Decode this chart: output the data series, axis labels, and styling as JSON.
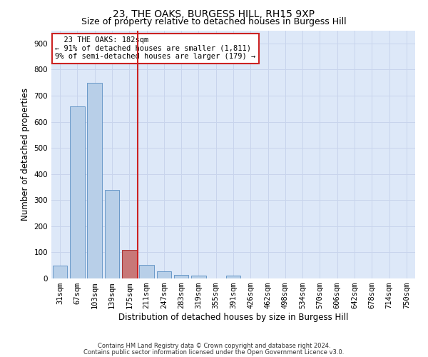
{
  "title1": "23, THE OAKS, BURGESS HILL, RH15 9XP",
  "title2": "Size of property relative to detached houses in Burgess Hill",
  "xlabel": "Distribution of detached houses by size in Burgess Hill",
  "ylabel": "Number of detached properties",
  "footer1": "Contains HM Land Registry data © Crown copyright and database right 2024.",
  "footer2": "Contains public sector information licensed under the Open Government Licence v3.0.",
  "annotation_line1": "  23 THE OAKS: 182sqm",
  "annotation_line2": "← 91% of detached houses are smaller (1,811)",
  "annotation_line3": "9% of semi-detached houses are larger (179) →",
  "bar_color": "#b8cfe8",
  "bar_edge_color": "#6898c8",
  "highlight_bar_color": "#c87878",
  "highlight_bar_edge_color": "#a83030",
  "vline_color": "#cc2222",
  "annotation_box_edge": "#cc2222",
  "background_color": "#dde8f8",
  "categories": [
    "31sqm",
    "67sqm",
    "103sqm",
    "139sqm",
    "175sqm",
    "211sqm",
    "247sqm",
    "283sqm",
    "319sqm",
    "355sqm",
    "391sqm",
    "426sqm",
    "462sqm",
    "498sqm",
    "534sqm",
    "570sqm",
    "606sqm",
    "642sqm",
    "678sqm",
    "714sqm",
    "750sqm"
  ],
  "values": [
    50,
    660,
    750,
    338,
    110,
    52,
    26,
    15,
    10,
    0,
    10,
    0,
    0,
    0,
    0,
    0,
    0,
    0,
    0,
    0,
    0
  ],
  "highlight_index": 4,
  "vline_x": 4.5,
  "ylim": [
    0,
    950
  ],
  "yticks": [
    0,
    100,
    200,
    300,
    400,
    500,
    600,
    700,
    800,
    900
  ],
  "grid_color": "#c8d4ec",
  "title1_fontsize": 10,
  "title2_fontsize": 9,
  "xlabel_fontsize": 8.5,
  "ylabel_fontsize": 8.5,
  "tick_fontsize": 7.5,
  "annotation_fontsize": 7.5,
  "footer_fontsize": 6.0
}
